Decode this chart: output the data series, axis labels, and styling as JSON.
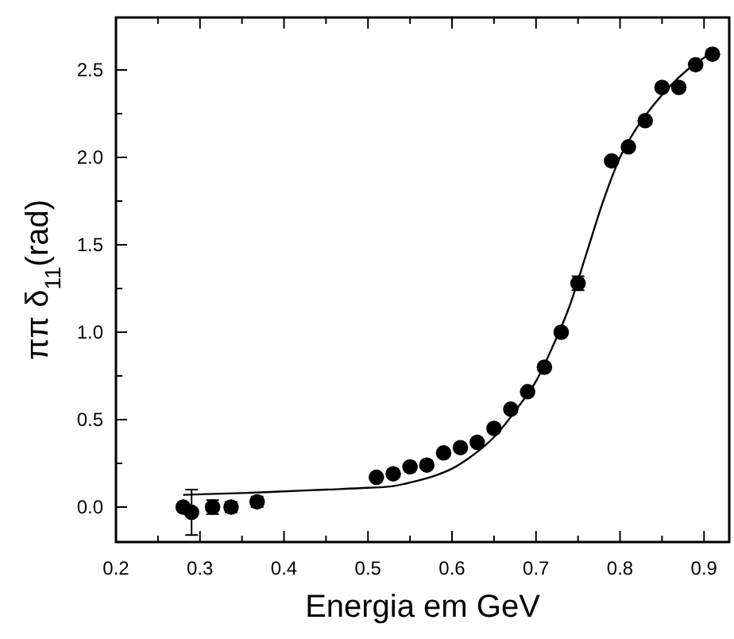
{
  "chart_data": {
    "type": "scatter",
    "xlabel": "Energia em GeV",
    "ylabel": "ππ δ$_{11}$(rad)",
    "xlim": [
      0.2,
      0.93
    ],
    "ylim": [
      -0.2,
      2.8
    ],
    "xticks": [
      0.2,
      {
        "value": 0.25,
        "label": null
      },
      0.3,
      {
        "value": 0.35,
        "label": null
      },
      0.4,
      {
        "value": 0.45,
        "label": null
      },
      0.5,
      {
        "value": 0.55,
        "label": null
      },
      0.6,
      {
        "value": 0.65,
        "label": null
      },
      0.7,
      {
        "value": 0.75,
        "label": null
      },
      0.8,
      {
        "value": 0.85,
        "label": null
      },
      0.9
    ],
    "yticks": [
      {
        "value": 0,
        "label": "0.0"
      },
      {
        "value": 0.25,
        "label": null
      },
      0.5,
      {
        "value": 0.75,
        "label": null
      },
      {
        "value": 1,
        "label": "1.0"
      },
      {
        "value": 1.25,
        "label": null
      },
      1.5,
      {
        "value": 1.75,
        "label": null
      },
      {
        "value": 2,
        "label": "2.0"
      },
      {
        "value": 2.25,
        "label": null
      },
      2.5
    ],
    "series": [
      {
        "marker": "circle",
        "color": "#000000",
        "x": [
          0.28,
          0.29,
          0.315,
          0.337,
          0.368,
          0.51,
          0.53,
          0.55,
          0.57,
          0.59,
          0.61,
          0.63,
          0.65,
          0.67,
          0.69,
          0.71,
          0.73,
          0.75,
          0.79,
          0.81,
          0.83,
          0.85,
          0.87,
          0.89,
          0.91
        ],
        "values": [
          0.0,
          -0.03,
          0.0,
          0.0,
          0.03,
          0.17,
          0.19,
          0.23,
          0.24,
          0.31,
          0.34,
          0.37,
          0.45,
          0.56,
          0.66,
          0.8,
          1.0,
          1.28,
          1.98,
          2.06,
          2.21,
          2.4,
          2.4,
          2.53,
          2.59
        ],
        "errors": [
          null,
          0.13,
          0.04,
          0.03,
          0.03,
          null,
          null,
          null,
          null,
          null,
          null,
          null,
          null,
          null,
          null,
          null,
          null,
          0.04,
          null,
          null,
          null,
          null,
          null,
          null,
          null
        ]
      },
      {
        "type": "line",
        "color": "#000000",
        "x": [
          0.28,
          0.35,
          0.4,
          0.45,
          0.5,
          0.53,
          0.55,
          0.58,
          0.6,
          0.62,
          0.65,
          0.68,
          0.7,
          0.72,
          0.74,
          0.76,
          0.78,
          0.8,
          0.82,
          0.84,
          0.86,
          0.88,
          0.91
        ],
        "values": [
          0.07,
          0.08,
          0.09,
          0.1,
          0.11,
          0.12,
          0.14,
          0.18,
          0.22,
          0.28,
          0.4,
          0.58,
          0.72,
          0.92,
          1.15,
          1.45,
          1.75,
          2.0,
          2.17,
          2.3,
          2.41,
          2.5,
          2.6
        ]
      }
    ]
  }
}
